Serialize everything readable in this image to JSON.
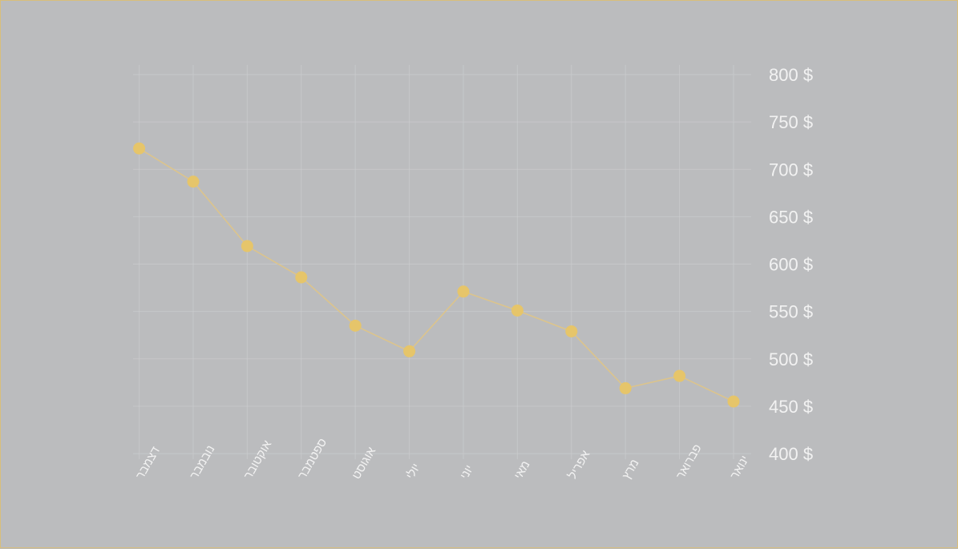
{
  "colors": {
    "background": "#bbbcbe",
    "border": "#d9be7a",
    "grid": "#cfd0d2",
    "text": "#f2f2f2",
    "line": "#dcc48c",
    "point": "#e6c56a"
  },
  "chart_data": {
    "type": "line",
    "title": "",
    "xlabel": "",
    "ylabel": "",
    "categories": [
      "ינואר",
      "פברואר",
      "מרץ",
      "אפריל",
      "מאי",
      "יוני",
      "יולי",
      "אוגוסט",
      "ספטמבר",
      "אוקטובר",
      "נובמבר",
      "דצמבר"
    ],
    "series": [
      {
        "values": [
          455,
          482,
          469,
          529,
          551,
          571,
          508,
          535,
          586,
          619,
          687,
          722
        ]
      }
    ],
    "x_axis_direction": "right-to-left",
    "y_axis_position": "right",
    "ylim": [
      400,
      800
    ],
    "y_ticks": [
      {
        "value": 800,
        "label": "800 $"
      },
      {
        "value": 750,
        "label": "750 $"
      },
      {
        "value": 700,
        "label": "700 $"
      },
      {
        "value": 650,
        "label": "650 $"
      },
      {
        "value": 600,
        "label": "600 $"
      },
      {
        "value": 550,
        "label": "550 $"
      },
      {
        "value": 500,
        "label": "500 $"
      },
      {
        "value": 450,
        "label": "450 $"
      },
      {
        "value": 400,
        "label": "400 $"
      }
    ],
    "grid": true,
    "legend": "none"
  }
}
